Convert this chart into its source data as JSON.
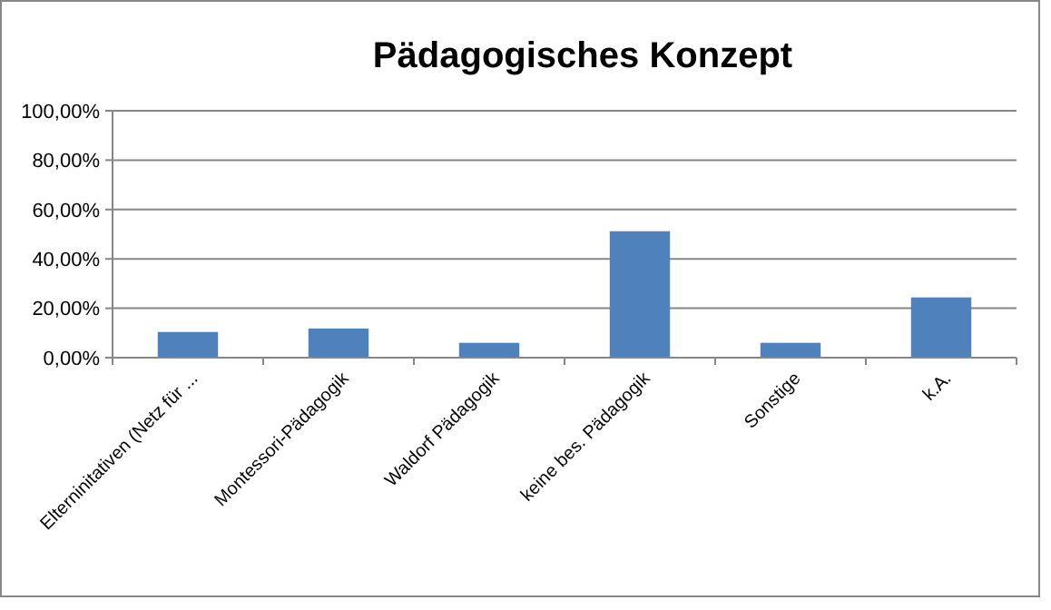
{
  "chart_data": {
    "type": "bar",
    "title": "Pädagogisches Konzept",
    "categories": [
      "Elterninitativen (Netz für ...",
      "Montessori-Pädagogik",
      "Waldorf Pädagogik",
      "keine bes. Pädagogik",
      "Sonstige",
      "k.A."
    ],
    "values": [
      10.4,
      11.8,
      6.0,
      51.2,
      6.0,
      24.4
    ],
    "color": "#4f81bd",
    "ylim": [
      0,
      100
    ],
    "yticks": [
      {
        "value": 0,
        "label": "0,00%"
      },
      {
        "value": 20,
        "label": "20,00%"
      },
      {
        "value": 40,
        "label": "40,00%"
      },
      {
        "value": 60,
        "label": "60,00%"
      },
      {
        "value": 80,
        "label": "80,00%"
      },
      {
        "value": 100,
        "label": "100,00%"
      }
    ],
    "grid": "y"
  }
}
